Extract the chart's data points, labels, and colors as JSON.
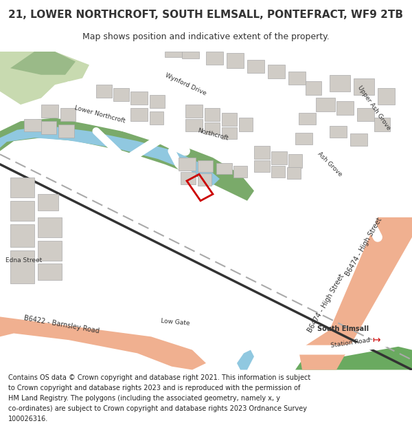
{
  "title_line1": "21, LOWER NORTHCROFT, SOUTH ELMSALL, PONTEFRACT, WF9 2TB",
  "title_line2": "Map shows position and indicative extent of the property.",
  "footer_lines": [
    "Contains OS data © Crown copyright and database right 2021. This information is subject",
    "to Crown copyright and database rights 2023 and is reproduced with the permission of",
    "HM Land Registry. The polygons (including the associated geometry, namely x, y",
    "co-ordinates) are subject to Crown copyright and database rights 2023 Ordnance Survey",
    "100026316."
  ],
  "map_bg": "#f0ece6",
  "road_salmon": "#f0b090",
  "building_color": "#d0ccc6",
  "green_light": "#c8dab0",
  "green_mid": "#9aba88",
  "green_dark": "#7aaa6a",
  "green_rail": "#6aaa60",
  "water_color": "#90c8e0",
  "plot_color": "#cc0000",
  "text_color": "#333333",
  "title_fontsize": 11,
  "subtitle_fontsize": 9,
  "footer_fontsize": 7,
  "label_fontsize": 6.5,
  "label_fontsize_lg": 7.0
}
